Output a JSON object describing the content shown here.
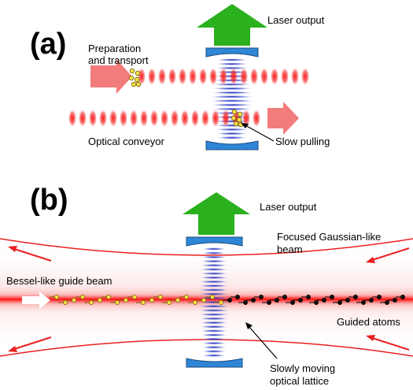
{
  "panel_a": {
    "letter": "(a)",
    "laser_output": "Laser output",
    "preparation_line1": "Preparation",
    "preparation_line2": "and transport",
    "optical_conveyor": "Optical conveyor",
    "slow_pulling": "Slow pulling"
  },
  "panel_b": {
    "letter": "(b)",
    "laser_output": "Laser output",
    "focused_line1": "Focused Gaussian-like",
    "focused_line2": "beam",
    "bessel_beam": "Bessel-like guide beam",
    "guided_atoms": "Guided atoms",
    "lattice_line1": "Slowly moving",
    "lattice_line2": "optical lattice"
  },
  "colors": {
    "laser_green": "#2bb01e",
    "mirror_blue": "#2f86d6",
    "standing_wave_blue": "#1f2fc0",
    "beam_red": "#e8201f",
    "arrow_pink": "#f27b7b",
    "atom_yellow": "#f5e04a",
    "atom_black": "#111111"
  }
}
